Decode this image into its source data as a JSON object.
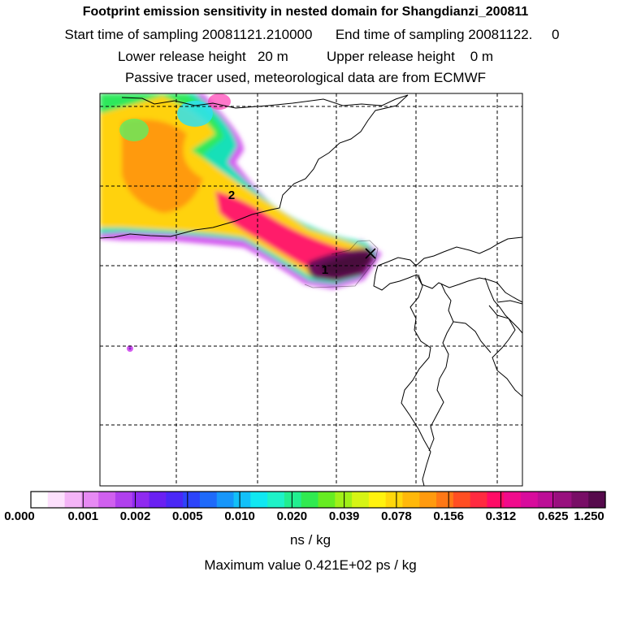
{
  "title": "Footprint emission sensitivity in nested domain for Shangdianzi_200811",
  "sampling": {
    "start_label": "Start time of sampling",
    "start_value": "20081121.210000",
    "end_label": "End time of sampling",
    "end_value": "20081122.",
    "end_suffix": "0"
  },
  "release": {
    "lower_label": "Lower release height",
    "lower_value": "20 m",
    "upper_label": "Upper release height",
    "upper_value": "0 m"
  },
  "subtitle": "Passive tracer used, meteorological data are from ECMWF",
  "map": {
    "markers": [
      {
        "label": "1"
      },
      {
        "label": "2"
      }
    ],
    "station_symbol": "x"
  },
  "colorbar": {
    "tick_labels": [
      "0.000",
      "0.001",
      "0.002",
      "0.005",
      "0.010",
      "0.020",
      "0.039",
      "0.078",
      "0.156",
      "0.312",
      "0.625",
      "1.250"
    ],
    "colors": [
      "#ffffff",
      "#fde0fd",
      "#f4b4f7",
      "#e78af4",
      "#d060ef",
      "#b040ee",
      "#8f2af0",
      "#6a20f2",
      "#4a28f6",
      "#2c44fa",
      "#1e6afa",
      "#1796fa",
      "#12c0f8",
      "#10e8f2",
      "#1ef2c8",
      "#22ee90",
      "#30ea50",
      "#66ec22",
      "#a0f018",
      "#d6f414",
      "#fff20e",
      "#ffd70c",
      "#ffb80a",
      "#ff9a0e",
      "#ff7816",
      "#ff4e22",
      "#ff2a40",
      "#ff0c66",
      "#f00c8c",
      "#d80c9c",
      "#bc0e96",
      "#98107e",
      "#780e66",
      "#560a4c"
    ],
    "units": "ns / kg"
  },
  "max_value": {
    "label": "Maximum value",
    "value": "0.421E+02 ps / kg"
  }
}
